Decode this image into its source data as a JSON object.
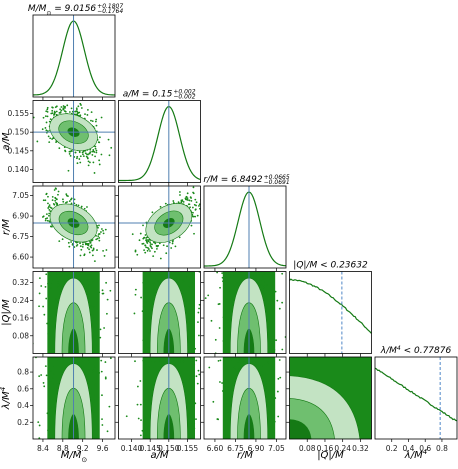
{
  "chart_data": {
    "type": "corner",
    "parameters": [
      {
        "key": "M",
        "label": "M/M",
        "label_sub": "⊙",
        "ticks": [
          8.4,
          8.8,
          9.2,
          9.6
        ],
        "range": [
          8.2,
          9.85
        ],
        "truth": 9.0156
      },
      {
        "key": "a",
        "label": "a/M",
        "label_sub": "",
        "ticks": [
          0.14,
          0.145,
          0.15,
          0.155
        ],
        "range": [
          0.1365,
          0.1585
        ],
        "truth": 0.15
      },
      {
        "key": "r",
        "label": "r/M",
        "label_sub": "",
        "ticks": [
          6.6,
          6.75,
          6.9,
          7.05
        ],
        "range": [
          6.52,
          7.12
        ],
        "truth": 6.8492
      },
      {
        "key": "Q",
        "label": "|Q|/M",
        "label_sub": "",
        "ticks": [
          0.08,
          0.16,
          0.24,
          0.32
        ],
        "range": [
          0.0,
          0.37
        ],
        "truth": null
      },
      {
        "key": "lambda",
        "label": "λ/M",
        "label_sup": "4",
        "ticks": [
          0.2,
          0.4,
          0.6,
          0.8
        ],
        "range": [
          0.0,
          0.98
        ],
        "truth": null
      }
    ],
    "tick_labels": {
      "M": [
        "8.4",
        "8.8",
        "9.2",
        "9.6"
      ],
      "a": [
        "0.140",
        "0.145",
        "0.150",
        "0.155"
      ],
      "r": [
        "6.60",
        "6.75",
        "6.90",
        "7.05"
      ],
      "Q": [
        "0.08",
        "0.16",
        "0.24",
        "0.32"
      ],
      "lambda": [
        "0.2",
        "0.4",
        "0.6",
        "0.8"
      ]
    },
    "diagonal_titles": [
      {
        "text": "M/M",
        "sub": "⊙",
        "rest": " = 9.0156",
        "sup": "+0.1807",
        "low": "−0.1764"
      },
      {
        "text": "a/M",
        "sub": "",
        "rest": " = 0.15",
        "sup": "+0.002",
        "low": "−0.002"
      },
      {
        "text": "r/M",
        "sub": "",
        "rest": " = 6.8492",
        "sup": "+0.0665",
        "low": "−0.0691"
      },
      {
        "text": "|Q|/M",
        "sub": "",
        "rest": " < 0.23632",
        "sup": "",
        "low": ""
      },
      {
        "text": "λ/M",
        "sub": "",
        "rest": " < 0.77876",
        "sup": "4",
        "low": ""
      }
    ],
    "estimates": {
      "M": {
        "median": 9.0156,
        "plus": 0.1807,
        "minus": 0.1764
      },
      "a": {
        "median": 0.15,
        "plus": 0.002,
        "minus": 0.002
      },
      "r": {
        "median": 6.8492,
        "plus": 0.0665,
        "minus": 0.0691
      },
      "Q": {
        "upper_limit": 0.23632
      },
      "lambda": {
        "upper_limit": 0.77876
      }
    },
    "correlations": {
      "M_a": -0.45,
      "M_r": -0.55,
      "a_r": 0.65
    },
    "colors": {
      "samples": "#1a8a1a",
      "contour_light": "#c3e3c3",
      "contour_mid": "#6fbf6f",
      "contour_dark": "#157a15",
      "truth_line": "#4f7fb0",
      "limit_line": "#4f86c6",
      "hist_line": "#157a15"
    }
  }
}
